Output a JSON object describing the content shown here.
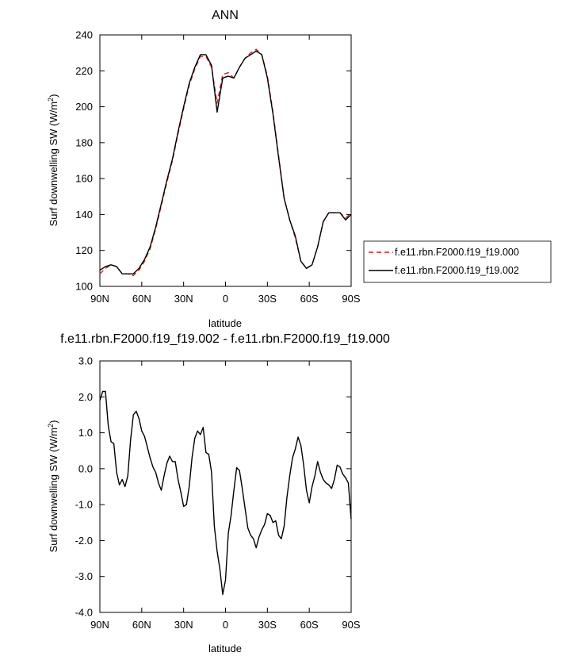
{
  "chart_data": [
    {
      "type": "line",
      "title": "ANN",
      "xlabel": "latitude",
      "ylabel": "Surf downwelling SW (W/m",
      "ylabel_sup": "2",
      "ylabel_tail": ")",
      "xlim": [
        90,
        -90
      ],
      "ylim": [
        100,
        240
      ],
      "xticks": [
        {
          "value": 90,
          "label": "90N"
        },
        {
          "value": 60,
          "label": "60N"
        },
        {
          "value": 30,
          "label": "30N"
        },
        {
          "value": 0,
          "label": "0"
        },
        {
          "value": -30,
          "label": "30S"
        },
        {
          "value": -60,
          "label": "60S"
        },
        {
          "value": -90,
          "label": "90S"
        }
      ],
      "yticks": [
        {
          "value": 100,
          "label": "100"
        },
        {
          "value": 120,
          "label": "120"
        },
        {
          "value": 140,
          "label": "140"
        },
        {
          "value": 160,
          "label": "160"
        },
        {
          "value": 180,
          "label": "180"
        },
        {
          "value": 200,
          "label": "200"
        },
        {
          "value": 220,
          "label": "220"
        },
        {
          "value": 240,
          "label": "240"
        }
      ],
      "legend_position": "right",
      "series": [
        {
          "name": "f.e11.rbn.F2000.f19_f19.000",
          "color": "#d62020",
          "dash": "dashed",
          "x": [
            90,
            86,
            82,
            78,
            74,
            70,
            66,
            62,
            58,
            54,
            50,
            46,
            42,
            38,
            34,
            30,
            26,
            22,
            18,
            14,
            10,
            6,
            2,
            -2,
            -6,
            -10,
            -14,
            -18,
            -22,
            -26,
            -30,
            -34,
            -38,
            -42,
            -46,
            -50,
            -54,
            -58,
            -62,
            -66,
            -70,
            -74,
            -78,
            -82,
            -86,
            -90
          ],
          "y": [
            107,
            110,
            112,
            111,
            107,
            107,
            106,
            109,
            114,
            121,
            132,
            145,
            158,
            170,
            185,
            199,
            212,
            221,
            228,
            228,
            222,
            202,
            218,
            219,
            216,
            222,
            227,
            230,
            232,
            229,
            217,
            197,
            173,
            149,
            137,
            127,
            114,
            110,
            112,
            122,
            136,
            141,
            141,
            141,
            138,
            141
          ]
        },
        {
          "name": "f.e11.rbn.F2000.f19_f19.002",
          "color": "#000000",
          "dash": "solid",
          "x": [
            90,
            86,
            82,
            78,
            74,
            70,
            66,
            62,
            58,
            54,
            50,
            46,
            42,
            38,
            34,
            30,
            26,
            22,
            18,
            14,
            10,
            6,
            2,
            -2,
            -6,
            -10,
            -14,
            -18,
            -22,
            -26,
            -30,
            -34,
            -38,
            -42,
            -46,
            -50,
            -54,
            -58,
            -62,
            -66,
            -70,
            -74,
            -78,
            -82,
            -86,
            -90
          ],
          "y": [
            109,
            111,
            112,
            111,
            107,
            107,
            107,
            110,
            115,
            122,
            133,
            146,
            159,
            171,
            186,
            200,
            213,
            222,
            229,
            229,
            223,
            197,
            216,
            217,
            216,
            222,
            227,
            229,
            231,
            229,
            216,
            196,
            172,
            149,
            137,
            128,
            114,
            110,
            112,
            122,
            136,
            141,
            141,
            141,
            137,
            140
          ]
        }
      ]
    },
    {
      "type": "line",
      "title": "f.e11.rbn.F2000.f19_f19.002 - f.e11.rbn.F2000.f19_f19.000",
      "xlabel": "latitude",
      "ylabel": "Surf downwelling SW (W/m",
      "ylabel_sup": "2",
      "ylabel_tail": ")",
      "xlim": [
        90,
        -90
      ],
      "ylim": [
        -4.0,
        3.0
      ],
      "xticks": [
        {
          "value": 90,
          "label": "90N"
        },
        {
          "value": 60,
          "label": "60N"
        },
        {
          "value": 30,
          "label": "30N"
        },
        {
          "value": 0,
          "label": "0"
        },
        {
          "value": -30,
          "label": "30S"
        },
        {
          "value": -60,
          "label": "60S"
        },
        {
          "value": -90,
          "label": "90S"
        }
      ],
      "yticks": [
        {
          "value": -4.0,
          "label": "-4.0"
        },
        {
          "value": -3.0,
          "label": "-3.0"
        },
        {
          "value": -2.0,
          "label": "-2.0"
        },
        {
          "value": -1.0,
          "label": "-1.0"
        },
        {
          "value": 0.0,
          "label": "0.0"
        },
        {
          "value": 1.0,
          "label": "1.0"
        },
        {
          "value": 2.0,
          "label": "2.0"
        },
        {
          "value": 3.0,
          "label": "3.0"
        }
      ],
      "series": [
        {
          "name": "",
          "color": "#000000",
          "dash": "solid",
          "x": [
            90,
            88,
            86,
            84,
            82,
            80,
            78,
            76,
            74,
            72,
            70,
            68,
            66,
            64,
            62,
            60,
            58,
            56,
            54,
            52,
            50,
            48,
            46,
            44,
            42,
            40,
            38,
            36,
            34,
            32,
            30,
            28,
            26,
            24,
            22,
            20,
            18,
            16,
            14,
            12,
            10,
            8,
            6,
            4,
            2,
            0,
            -2,
            -4,
            -6,
            -8,
            -10,
            -12,
            -14,
            -16,
            -18,
            -20,
            -22,
            -24,
            -26,
            -28,
            -30,
            -32,
            -34,
            -36,
            -38,
            -40,
            -42,
            -44,
            -46,
            -48,
            -50,
            -52,
            -54,
            -56,
            -58,
            -60,
            -62,
            -64,
            -66,
            -68,
            -70,
            -72,
            -74,
            -76,
            -78,
            -80,
            -82,
            -84,
            -86,
            -88,
            -90
          ],
          "y": [
            1.9,
            2.15,
            2.15,
            1.2,
            0.75,
            0.7,
            -0.1,
            -0.45,
            -0.3,
            -0.5,
            -0.2,
            0.8,
            1.5,
            1.6,
            1.4,
            1.05,
            0.9,
            0.6,
            0.3,
            0.05,
            -0.1,
            -0.4,
            -0.6,
            -0.2,
            0.15,
            0.35,
            0.2,
            0.2,
            -0.3,
            -0.65,
            -1.05,
            -1.0,
            -0.5,
            0.3,
            0.85,
            1.05,
            0.95,
            1.15,
            0.45,
            0.4,
            -0.1,
            -1.6,
            -2.3,
            -2.8,
            -3.5,
            -3.1,
            -1.8,
            -1.3,
            -0.6,
            0.03,
            -0.05,
            -0.55,
            -1.1,
            -1.65,
            -1.85,
            -1.95,
            -2.2,
            -1.9,
            -1.7,
            -1.55,
            -1.25,
            -1.3,
            -1.5,
            -1.45,
            -1.85,
            -1.95,
            -1.6,
            -0.8,
            -0.2,
            0.3,
            0.55,
            0.88,
            0.65,
            0.1,
            -0.6,
            -0.95,
            -0.5,
            -0.2,
            0.2,
            -0.1,
            -0.3,
            -0.4,
            -0.45,
            -0.55,
            -0.3,
            0.1,
            0.05,
            -0.15,
            -0.25,
            -0.4,
            -1.4
          ]
        }
      ]
    }
  ]
}
